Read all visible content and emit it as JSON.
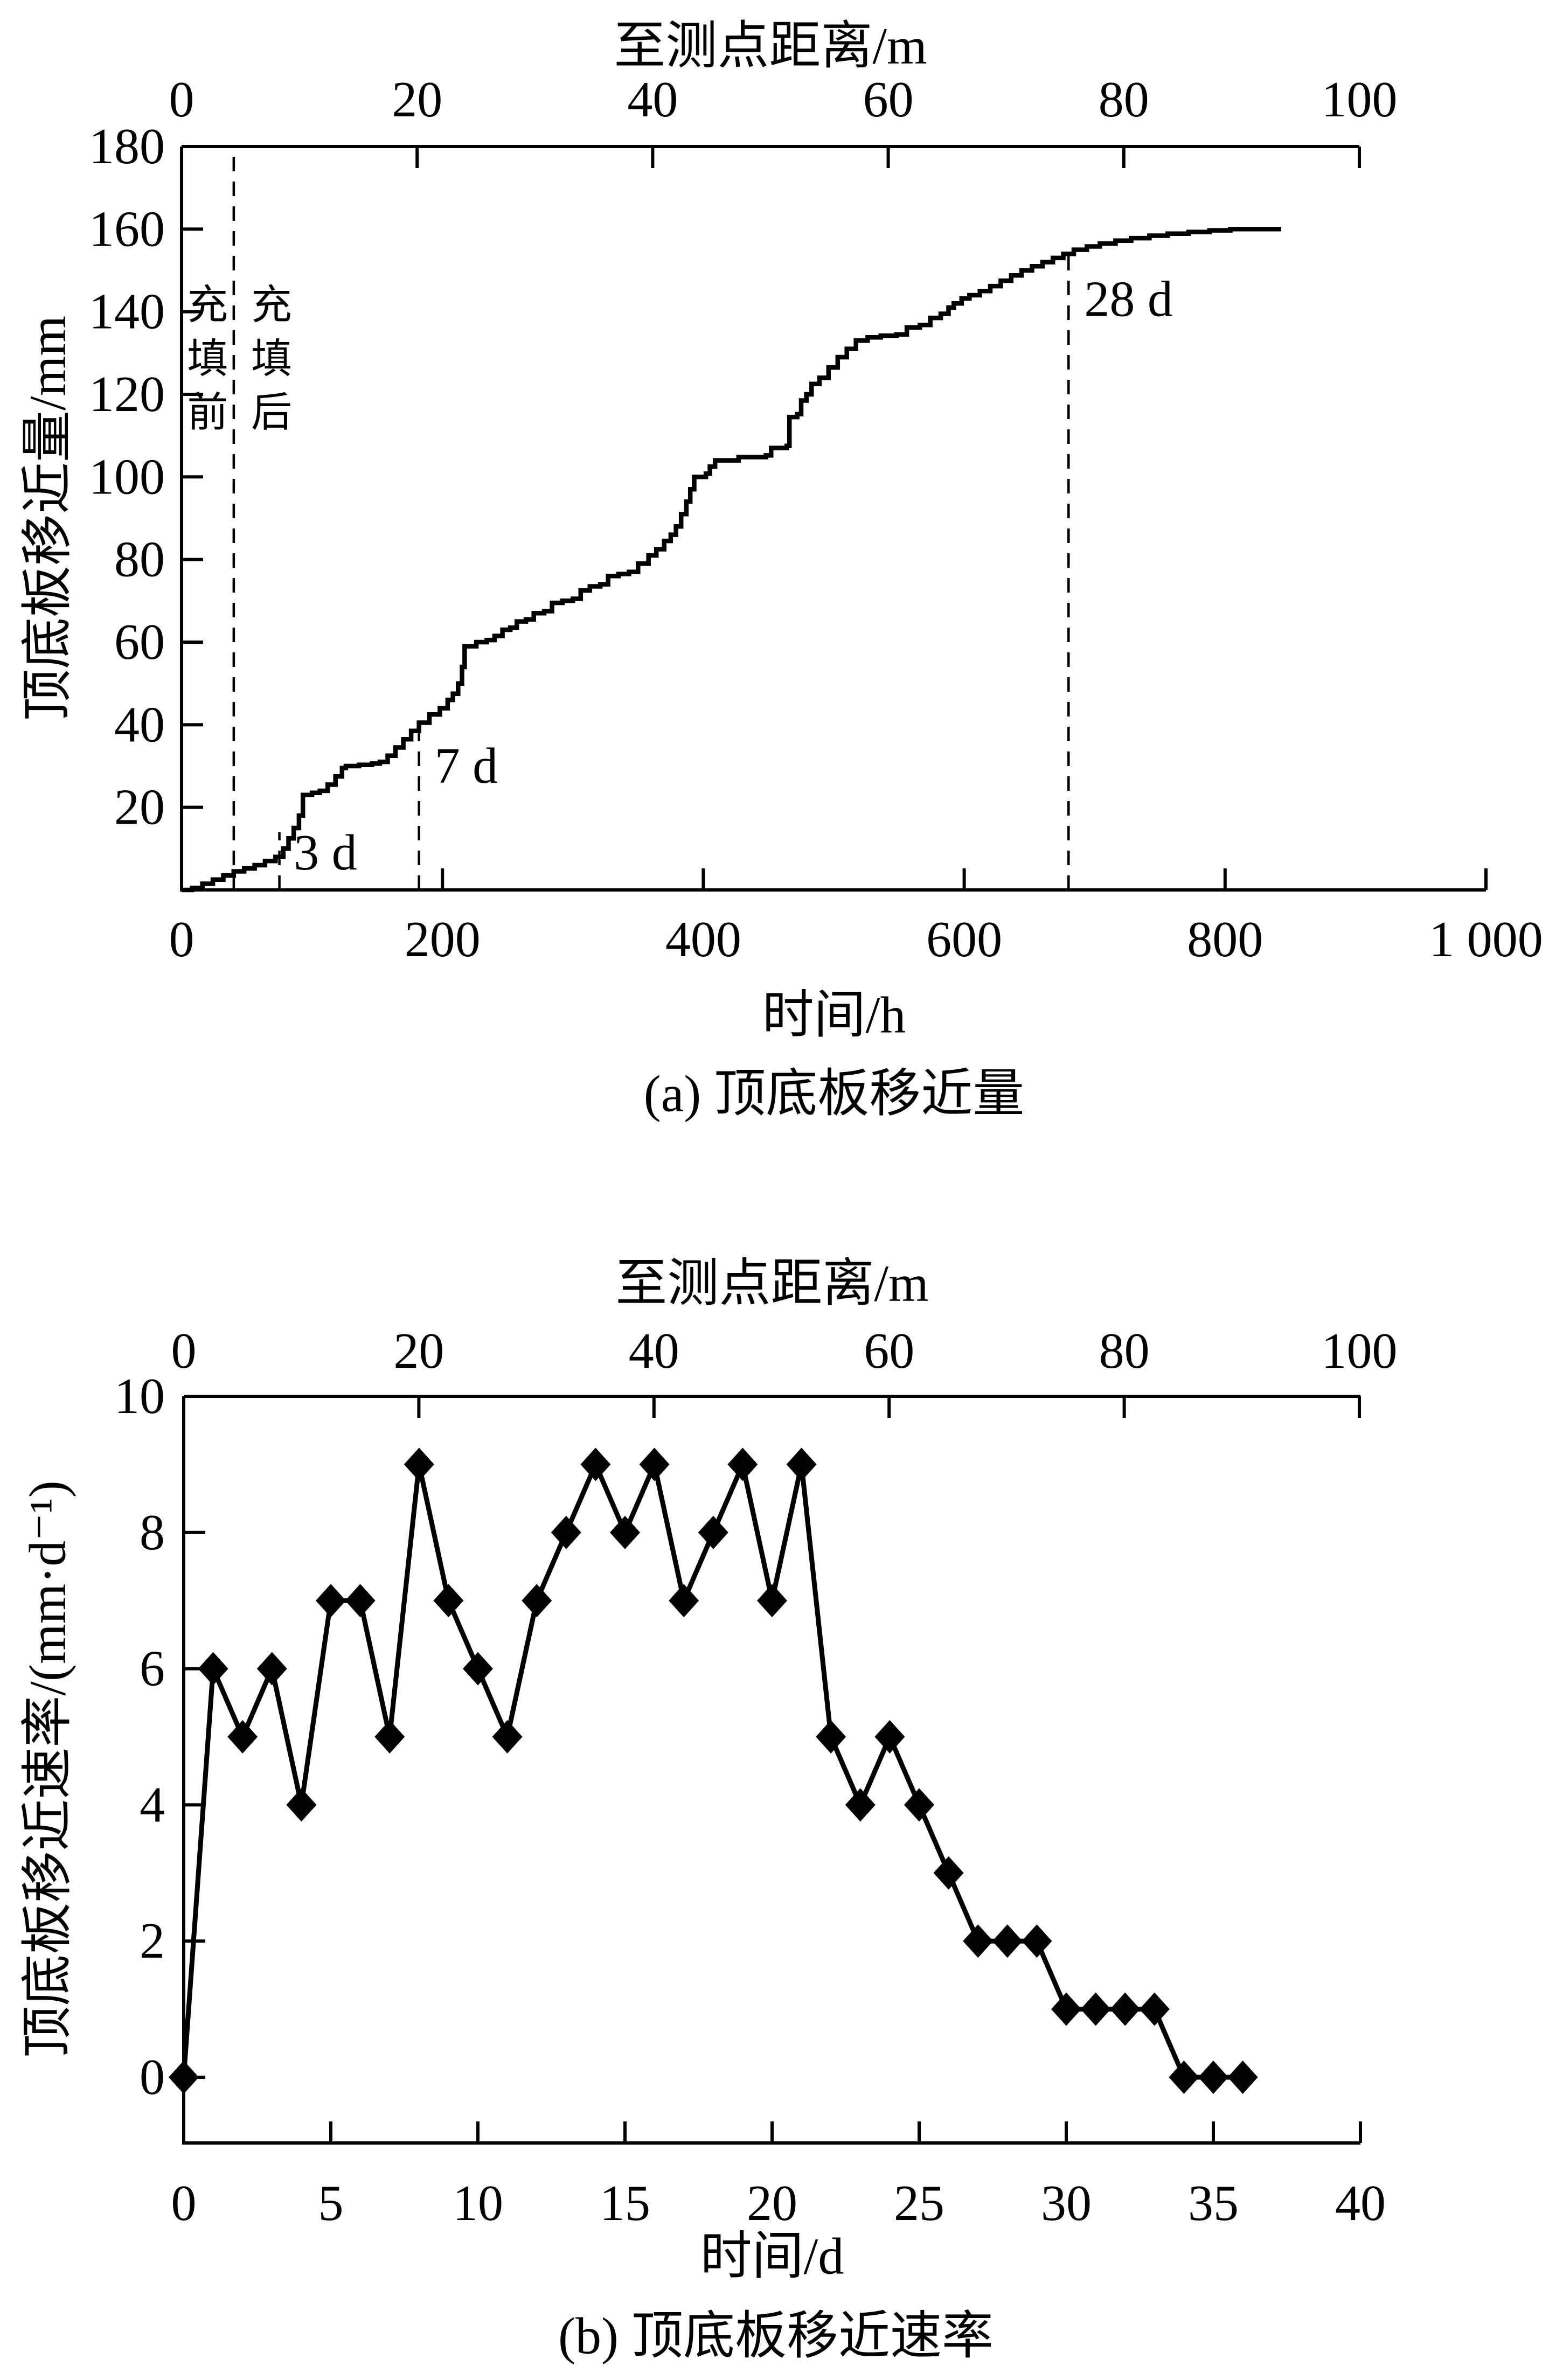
{
  "figure": {
    "background": "#ffffff",
    "ink": "#000000"
  },
  "chart_data": [
    {
      "id": "a",
      "type": "line",
      "style": "step",
      "caption": "(a)  顶底板移近量",
      "top_axis": {
        "title": "至测点距离/m",
        "ticks": [
          0,
          20,
          40,
          60,
          80,
          100
        ],
        "range": [
          0,
          100
        ]
      },
      "x_axis": {
        "title": "时间/h",
        "ticks": [
          0,
          200,
          400,
          600,
          800,
          1000
        ],
        "tick_labels": [
          "0",
          "200",
          "400",
          "600",
          "800",
          "1 000"
        ],
        "range": [
          0,
          1000
        ]
      },
      "y_axis": {
        "title": "顶底板移近量/mm",
        "ticks": [
          20,
          40,
          60,
          80,
          100,
          120,
          140,
          160,
          180
        ],
        "range": [
          0,
          180
        ]
      },
      "annotations": {
        "dashed_lines": [
          {
            "name": "fill-line",
            "t": 40,
            "from_mm": 0,
            "to_mm": 180
          },
          {
            "name": "line-3d",
            "t": 75,
            "from_mm": 0,
            "to_mm": 14
          },
          {
            "name": "line-7d",
            "t": 182,
            "from_mm": 0,
            "to_mm": 39
          },
          {
            "name": "line-28d",
            "t": 680,
            "from_mm": 0,
            "to_mm": 156
          }
        ],
        "labels": [
          {
            "text": "3 d",
            "t": 86,
            "mm": 9
          },
          {
            "text": "7 d",
            "t": 194,
            "mm": 30
          },
          {
            "text": "28 d",
            "t": 692,
            "mm": 143
          }
        ],
        "fill_labels": [
          {
            "text": "充填前",
            "t": 20,
            "top_mm": 141.5,
            "pitch_mm": 13
          },
          {
            "text": "充填后",
            "t": 69,
            "top_mm": 141.5,
            "pitch_mm": 13
          }
        ]
      },
      "series": [
        {
          "name": "顶底板移近量",
          "points": [
            [
              0,
              0
            ],
            [
              8,
              0.5
            ],
            [
              16,
              1.5
            ],
            [
              24,
              2.5
            ],
            [
              32,
              3.5
            ],
            [
              40,
              4.5
            ],
            [
              48,
              5.2
            ],
            [
              56,
              6
            ],
            [
              64,
              7
            ],
            [
              72,
              8
            ],
            [
              78,
              10
            ],
            [
              82,
              12.5
            ],
            [
              86,
              15
            ],
            [
              90,
              18
            ],
            [
              93,
              23
            ],
            [
              100,
              23.5
            ],
            [
              106,
              24
            ],
            [
              112,
              25.5
            ],
            [
              118,
              27.5
            ],
            [
              123,
              29.5
            ],
            [
              126,
              30
            ],
            [
              136,
              30.3
            ],
            [
              146,
              30.6
            ],
            [
              152,
              31
            ],
            [
              158,
              32.5
            ],
            [
              164,
              34.5
            ],
            [
              170,
              36.5
            ],
            [
              176,
              38.5
            ],
            [
              182,
              40.5
            ],
            [
              190,
              42.5
            ],
            [
              198,
              44
            ],
            [
              204,
              46
            ],
            [
              208,
              47.5
            ],
            [
              212,
              50
            ],
            [
              215,
              54
            ],
            [
              217,
              59
            ],
            [
              226,
              60
            ],
            [
              234,
              60.5
            ],
            [
              240,
              61.5
            ],
            [
              246,
              63
            ],
            [
              252,
              63.5
            ],
            [
              257,
              65
            ],
            [
              264,
              65.5
            ],
            [
              270,
              67
            ],
            [
              278,
              67.5
            ],
            [
              284,
              69.5
            ],
            [
              292,
              70
            ],
            [
              300,
              70.5
            ],
            [
              306,
              72.5
            ],
            [
              313,
              73.5
            ],
            [
              321,
              74
            ],
            [
              327,
              76
            ],
            [
              335,
              76.5
            ],
            [
              343,
              77
            ],
            [
              350,
              79
            ],
            [
              358,
              81
            ],
            [
              364,
              82.5
            ],
            [
              370,
              84.5
            ],
            [
              375,
              86
            ],
            [
              379,
              88
            ],
            [
              383,
              91
            ],
            [
              387,
              94
            ],
            [
              390,
              97
            ],
            [
              393,
              100
            ],
            [
              402,
              100.8
            ],
            [
              405,
              102.5
            ],
            [
              409,
              104
            ],
            [
              427,
              104.8
            ],
            [
              448,
              105.2
            ],
            [
              452,
              107
            ],
            [
              464,
              107.5
            ],
            [
              466,
              114.5
            ],
            [
              472,
              115.2
            ],
            [
              475,
              118.5
            ],
            [
              479,
              120
            ],
            [
              483,
              122.5
            ],
            [
              489,
              124
            ],
            [
              496,
              126.5
            ],
            [
              503,
              129
            ],
            [
              510,
              131
            ],
            [
              517,
              133
            ],
            [
              526,
              133.8
            ],
            [
              536,
              134.2
            ],
            [
              548,
              134.5
            ],
            [
              556,
              136.2
            ],
            [
              566,
              136.8
            ],
            [
              574,
              138.5
            ],
            [
              582,
              139.5
            ],
            [
              588,
              141
            ],
            [
              592,
              142
            ],
            [
              598,
              143.2
            ],
            [
              604,
              144
            ],
            [
              612,
              145
            ],
            [
              620,
              146.2
            ],
            [
              628,
              147.5
            ],
            [
              636,
              148.8
            ],
            [
              644,
              150
            ],
            [
              652,
              151
            ],
            [
              660,
              152
            ],
            [
              668,
              153
            ],
            [
              676,
              154
            ],
            [
              684,
              155
            ],
            [
              694,
              155.8
            ],
            [
              704,
              156.5
            ],
            [
              716,
              157.2
            ],
            [
              728,
              157.8
            ],
            [
              742,
              158.4
            ],
            [
              756,
              158.9
            ],
            [
              772,
              159.3
            ],
            [
              788,
              159.7
            ],
            [
              804,
              160
            ],
            [
              843,
              160
            ]
          ]
        }
      ]
    },
    {
      "id": "b",
      "type": "line",
      "style": "diamond-markers",
      "caption": "(b)  顶底板移近速率",
      "top_axis": {
        "title": "至测点距离/m",
        "ticks": [
          0,
          20,
          40,
          60,
          80,
          100
        ],
        "range": [
          0,
          100
        ]
      },
      "x_axis": {
        "title": "时间/d",
        "ticks": [
          0,
          5,
          10,
          15,
          20,
          25,
          30,
          35,
          40
        ],
        "range": [
          0,
          40
        ]
      },
      "y_axis": {
        "title": "顶底板移近速率/(mm·d⁻¹)",
        "ticks": [
          0,
          2,
          4,
          6,
          8,
          10
        ],
        "range": [
          0,
          10
        ]
      },
      "series": [
        {
          "name": "顶底板移近速率",
          "x": [
            0,
            1,
            2,
            3,
            4,
            5,
            6,
            7,
            8,
            9,
            10,
            11,
            12,
            13,
            14,
            15,
            16,
            17,
            18,
            19,
            20,
            21,
            22,
            23,
            24,
            25,
            26,
            27,
            28,
            29,
            30,
            31,
            32,
            33,
            34,
            35,
            36
          ],
          "y": [
            0,
            6,
            5,
            6,
            4,
            7,
            7,
            5,
            9,
            7,
            6,
            5,
            7,
            8,
            9,
            8,
            9,
            7,
            8,
            9,
            7,
            9,
            5,
            4,
            5,
            4,
            3,
            2,
            2,
            2,
            1,
            1,
            1,
            1,
            0,
            0,
            0
          ]
        }
      ]
    }
  ]
}
